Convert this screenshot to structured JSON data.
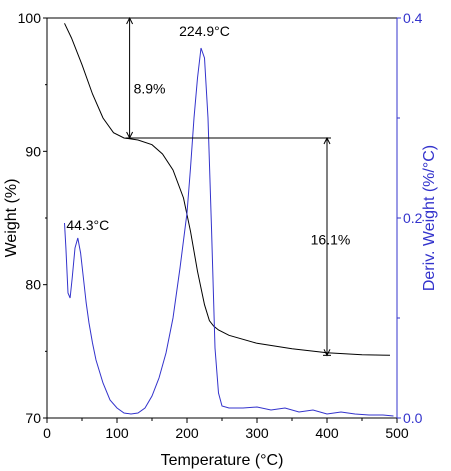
{
  "chart_data": {
    "type": "line",
    "title": "",
    "xlabel": "Temperature (°C)",
    "ylabel_left": "Weight (%)",
    "ylabel_right": "Deriv. Weight (%/°C)",
    "xlim": [
      0,
      500
    ],
    "ylim_left": [
      70,
      100
    ],
    "ylim_right": [
      0.0,
      0.4
    ],
    "x_ticks": [
      0,
      100,
      200,
      300,
      400,
      500
    ],
    "y_left_ticks": [
      70,
      80,
      90,
      100
    ],
    "y_right_ticks": [
      "0.0",
      "0.2",
      "0.4"
    ],
    "colors": {
      "weight": "#000000",
      "deriv": "#3333cc",
      "axis_right": "#3333cc"
    },
    "series": [
      {
        "axis": "left",
        "color": "#000000",
        "x": [
          25,
          35,
          50,
          65,
          80,
          95,
          110,
          130,
          150,
          165,
          180,
          195,
          205,
          215,
          225,
          232,
          238,
          245,
          260,
          300,
          350,
          400,
          450,
          490
        ],
        "y": [
          99.6,
          98.5,
          96.5,
          94.3,
          92.5,
          91.4,
          91.0,
          90.85,
          90.5,
          89.8,
          88.6,
          86.5,
          84.0,
          81.0,
          78.5,
          77.3,
          76.9,
          76.6,
          76.2,
          75.6,
          75.2,
          74.9,
          74.75,
          74.7
        ]
      },
      {
        "axis": "right",
        "color": "#3333cc",
        "x": [
          25,
          27,
          30,
          33,
          36,
          40,
          44,
          48,
          52,
          56,
          60,
          65,
          70,
          80,
          90,
          100,
          110,
          120,
          130,
          140,
          150,
          160,
          170,
          180,
          190,
          200,
          205,
          210,
          215,
          220,
          225,
          230,
          235,
          240,
          245,
          250,
          260,
          280,
          300,
          320,
          340,
          360,
          380,
          400,
          420,
          440,
          460,
          480,
          495
        ],
        "y": [
          0.195,
          0.17,
          0.125,
          0.12,
          0.14,
          0.17,
          0.18,
          0.165,
          0.14,
          0.115,
          0.095,
          0.075,
          0.058,
          0.035,
          0.018,
          0.01,
          0.005,
          0.004,
          0.005,
          0.01,
          0.022,
          0.04,
          0.065,
          0.1,
          0.15,
          0.205,
          0.25,
          0.3,
          0.34,
          0.37,
          0.36,
          0.3,
          0.19,
          0.07,
          0.025,
          0.012,
          0.01,
          0.01,
          0.011,
          0.008,
          0.01,
          0.006,
          0.008,
          0.004,
          0.006,
          0.004,
          0.003,
          0.003,
          0.002
        ]
      }
    ],
    "annotations": [
      {
        "text": "224.9°C",
        "x": 225,
        "axis": "right",
        "y": 0.37
      },
      {
        "text": "44.3°C",
        "x": 44,
        "axis": "right",
        "y": 0.18
      },
      {
        "text": "8.9%",
        "x": 118,
        "axis": "left",
        "y": 96.0
      },
      {
        "text": "16.1%",
        "x": 385,
        "axis": "left",
        "y": 83.0
      }
    ],
    "steps": [
      {
        "x": 118,
        "y_from": 100,
        "y_to": 91.0,
        "label": "8.9%"
      },
      {
        "x": 400,
        "y_from": 91.0,
        "y_to": 74.7,
        "label": "16.1%"
      }
    ]
  }
}
